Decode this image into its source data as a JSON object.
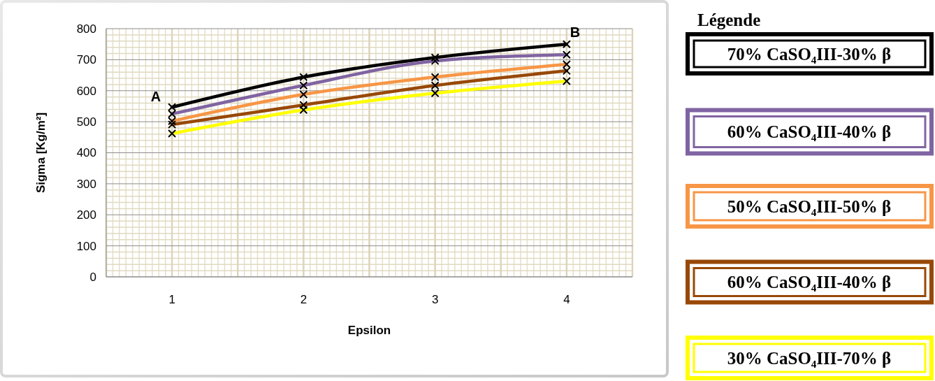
{
  "chart_data": {
    "type": "line",
    "xlabel": "Epsilon",
    "ylabel": "Sigma [Kg/m²]",
    "legend_title": "Légende",
    "legend": "right",
    "grid": true,
    "marker": "cross",
    "line_style": "solid",
    "categories": [
      "1",
      "2",
      "3",
      "4"
    ],
    "ylim": [
      0,
      800
    ],
    "yticks": [
      0,
      100,
      200,
      300,
      400,
      500,
      600,
      700,
      800
    ],
    "annotations": [
      {
        "text": "A",
        "x": "1",
        "y": 547
      },
      {
        "text": "B",
        "x": "4",
        "y": 750
      }
    ],
    "series": [
      {
        "name": "70% CaSO₄III-30% β",
        "color": "#000000",
        "values": [
          547,
          644,
          707,
          750
        ]
      },
      {
        "name": "60% CaSO₄III-40% β",
        "color": "#8064a2",
        "values": [
          525,
          617,
          696,
          716
        ]
      },
      {
        "name": "50% CaSO₄III-50% β",
        "color": "#f79646",
        "values": [
          502,
          588,
          644,
          685
        ]
      },
      {
        "name": "60% CaSO₄III-40% β",
        "color": "#984807",
        "values": [
          491,
          554,
          617,
          664
        ]
      },
      {
        "name": "30% CaSO₄III-70% β",
        "color": "#ffff00",
        "values": [
          462,
          538,
          592,
          631
        ]
      }
    ]
  }
}
